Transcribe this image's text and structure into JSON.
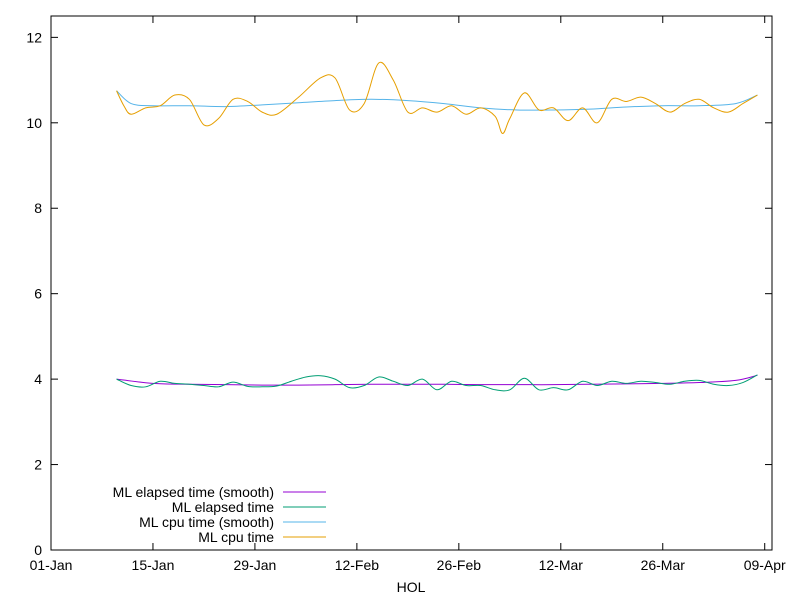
{
  "chart_data": {
    "type": "line",
    "xlabel": "HOL",
    "ylabel": "",
    "title": "",
    "ylim": [
      0,
      12.5
    ],
    "xlim": [
      "2024-01-01",
      "2024-04-09"
    ],
    "x_ticks": [
      "01-Jan",
      "15-Jan",
      "29-Jan",
      "12-Feb",
      "26-Feb",
      "12-Mar",
      "26-Mar",
      "09-Apr"
    ],
    "y_ticks": [
      "0",
      "2",
      "4",
      "6",
      "8",
      "10",
      "12"
    ],
    "legend_position": "bottom-left",
    "grid": false,
    "series": [
      {
        "name": "ML elapsed time (smooth)",
        "color": "#9400d3",
        "x": [
          "2024-01-10",
          "2024-01-15",
          "2024-01-20",
          "2024-01-25",
          "2024-01-30",
          "2024-02-04",
          "2024-02-09",
          "2024-02-14",
          "2024-02-19",
          "2024-02-24",
          "2024-02-29",
          "2024-03-05",
          "2024-03-10",
          "2024-03-15",
          "2024-03-20",
          "2024-03-25",
          "2024-03-30",
          "2024-04-04",
          "2024-04-07"
        ],
        "y": [
          4.0,
          3.9,
          3.88,
          3.87,
          3.86,
          3.86,
          3.87,
          3.88,
          3.88,
          3.88,
          3.87,
          3.87,
          3.87,
          3.88,
          3.89,
          3.9,
          3.92,
          3.97,
          4.09
        ]
      },
      {
        "name": "ML elapsed time",
        "color": "#009e73",
        "x": [
          "2024-01-10",
          "2024-01-12",
          "2024-01-14",
          "2024-01-16",
          "2024-01-18",
          "2024-01-20",
          "2024-01-22",
          "2024-01-24",
          "2024-01-26",
          "2024-01-28",
          "2024-01-30",
          "2024-02-01",
          "2024-02-03",
          "2024-02-05",
          "2024-02-07",
          "2024-02-09",
          "2024-02-11",
          "2024-02-13",
          "2024-02-15",
          "2024-02-17",
          "2024-02-19",
          "2024-02-21",
          "2024-02-23",
          "2024-02-25",
          "2024-02-27",
          "2024-02-29",
          "2024-03-02",
          "2024-03-04",
          "2024-03-06",
          "2024-03-08",
          "2024-03-10",
          "2024-03-12",
          "2024-03-14",
          "2024-03-16",
          "2024-03-18",
          "2024-03-20",
          "2024-03-22",
          "2024-03-24",
          "2024-03-26",
          "2024-03-28",
          "2024-03-30",
          "2024-04-01",
          "2024-04-03",
          "2024-04-05",
          "2024-04-07"
        ],
        "y": [
          4.0,
          3.85,
          3.82,
          3.95,
          3.9,
          3.88,
          3.85,
          3.82,
          3.93,
          3.83,
          3.82,
          3.84,
          3.95,
          4.05,
          4.08,
          4.0,
          3.8,
          3.85,
          4.05,
          3.95,
          3.85,
          4.0,
          3.75,
          3.95,
          3.85,
          3.85,
          3.75,
          3.75,
          4.02,
          3.75,
          3.8,
          3.75,
          3.95,
          3.85,
          3.95,
          3.9,
          3.95,
          3.92,
          3.88,
          3.95,
          3.97,
          3.88,
          3.85,
          3.92,
          4.1
        ]
      },
      {
        "name": "ML cpu time (smooth)",
        "color": "#56b4e9",
        "x": [
          "2024-01-10",
          "2024-01-12",
          "2024-01-15",
          "2024-01-20",
          "2024-01-25",
          "2024-01-30",
          "2024-02-04",
          "2024-02-09",
          "2024-02-14",
          "2024-02-19",
          "2024-02-24",
          "2024-02-29",
          "2024-03-05",
          "2024-03-10",
          "2024-03-15",
          "2024-03-20",
          "2024-03-25",
          "2024-03-30",
          "2024-04-04",
          "2024-04-07"
        ],
        "y": [
          10.75,
          10.45,
          10.4,
          10.4,
          10.38,
          10.42,
          10.47,
          10.52,
          10.55,
          10.52,
          10.45,
          10.35,
          10.3,
          10.3,
          10.32,
          10.37,
          10.4,
          10.4,
          10.45,
          10.65
        ]
      },
      {
        "name": "ML cpu time",
        "color": "#e69f00",
        "x": [
          "2024-01-10",
          "2024-01-11",
          "2024-01-12",
          "2024-01-14",
          "2024-01-16",
          "2024-01-18",
          "2024-01-20",
          "2024-01-22",
          "2024-01-24",
          "2024-01-26",
          "2024-01-28",
          "2024-01-30",
          "2024-02-01",
          "2024-02-04",
          "2024-02-07",
          "2024-02-09",
          "2024-02-11",
          "2024-02-13",
          "2024-02-15",
          "2024-02-17",
          "2024-02-19",
          "2024-02-21",
          "2024-02-23",
          "2024-02-25",
          "2024-02-27",
          "2024-02-29",
          "2024-03-02",
          "2024-03-03",
          "2024-03-04",
          "2024-03-06",
          "2024-03-08",
          "2024-03-10",
          "2024-03-12",
          "2024-03-14",
          "2024-03-16",
          "2024-03-18",
          "2024-03-20",
          "2024-03-22",
          "2024-03-24",
          "2024-03-26",
          "2024-03-28",
          "2024-03-30",
          "2024-04-01",
          "2024-04-03",
          "2024-04-05",
          "2024-04-07"
        ],
        "y": [
          10.75,
          10.4,
          10.2,
          10.35,
          10.4,
          10.65,
          10.55,
          9.95,
          10.1,
          10.55,
          10.5,
          10.25,
          10.2,
          10.6,
          11.05,
          11.05,
          10.3,
          10.45,
          11.4,
          11.0,
          10.25,
          10.35,
          10.25,
          10.4,
          10.2,
          10.35,
          10.15,
          9.75,
          10.1,
          10.7,
          10.3,
          10.35,
          10.05,
          10.35,
          10.0,
          10.55,
          10.5,
          10.6,
          10.45,
          10.25,
          10.45,
          10.55,
          10.35,
          10.25,
          10.45,
          10.65
        ]
      }
    ]
  }
}
